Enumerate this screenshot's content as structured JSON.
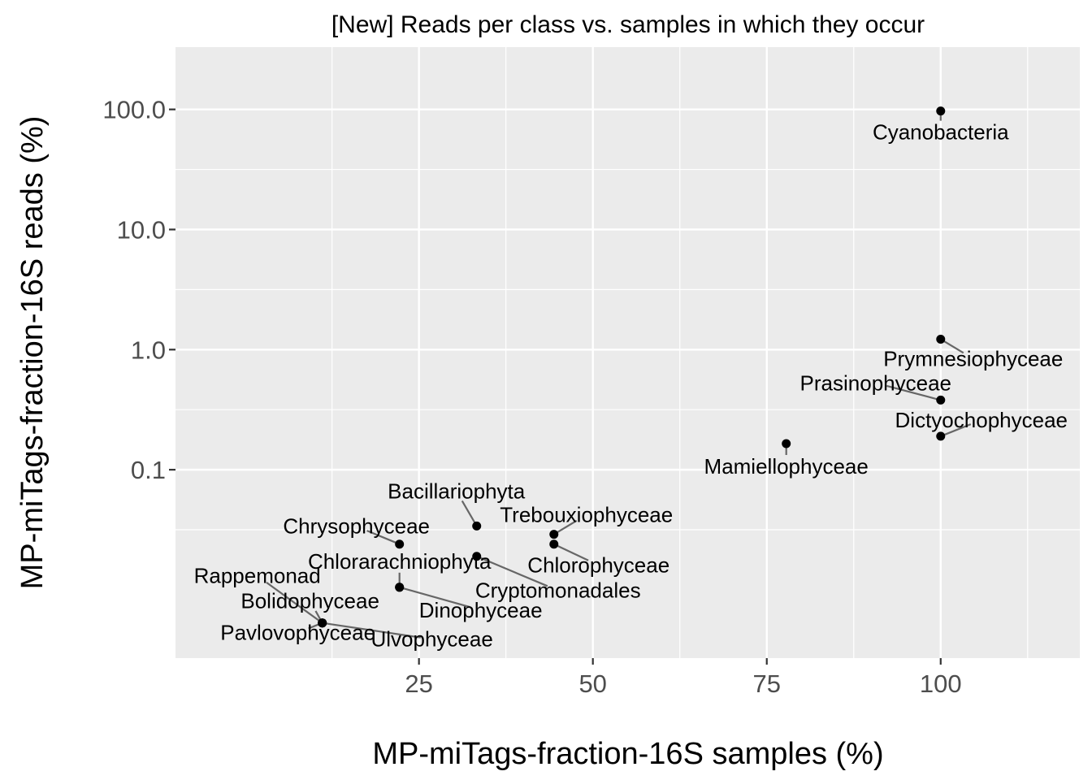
{
  "chart_data": {
    "type": "scatter",
    "title": "[New] Reads per class vs. samples in which they occur",
    "xlabel": "MP-miTags-fraction-16S samples (%)",
    "ylabel": "MP-miTags-fraction-16S reads (%)",
    "x_scale": "linear",
    "y_scale": "log10",
    "xlim": [
      -10,
      120
    ],
    "ylim": [
      0.0027,
      330
    ],
    "x_ticks": [
      25,
      50,
      75,
      100
    ],
    "x_tick_labels": [
      "25",
      "50",
      "75",
      "100"
    ],
    "y_ticks": [
      0.1,
      1,
      10,
      100
    ],
    "y_tick_labels": [
      "0.1",
      "1.0",
      "10.0",
      "100.0"
    ],
    "grid": true,
    "legend": "none",
    "points": [
      {
        "label": "Cyanobacteria",
        "x": 100,
        "y": 97
      },
      {
        "label": "Prymnesiophyceae",
        "x": 100,
        "y": 1.22
      },
      {
        "label": "Prasinophyceae",
        "x": 100,
        "y": 0.38
      },
      {
        "label": "Dictyochophyceae",
        "x": 100,
        "y": 0.19
      },
      {
        "label": "Mamiellophyceae",
        "x": 77.8,
        "y": 0.165
      },
      {
        "label": "Bacillariophyta",
        "x": 33.3,
        "y": 0.034
      },
      {
        "label": "Trebouxiophyceae",
        "x": 44.4,
        "y": 0.029
      },
      {
        "label": "Chlorophyceae",
        "x": 44.4,
        "y": 0.024
      },
      {
        "label": "Chrysophyceae",
        "x": 22.2,
        "y": 0.024
      },
      {
        "label": "Cryptomonadales",
        "x": 33.3,
        "y": 0.019
      },
      {
        "label": "Chlorarachniophyta",
        "x": 22.2,
        "y": 0.0105
      },
      {
        "label": "Dinophyceae",
        "x": 22.2,
        "y": 0.0105
      },
      {
        "label": "Rappemonad",
        "x": 11.1,
        "y": 0.0053
      },
      {
        "label": "Bolidophyceae",
        "x": 11.1,
        "y": 0.0053
      },
      {
        "label": "Pavlovophyceae",
        "x": 11.1,
        "y": 0.0053
      },
      {
        "label": "Ulvophyceae",
        "x": 11.1,
        "y": 0.0053
      }
    ]
  }
}
